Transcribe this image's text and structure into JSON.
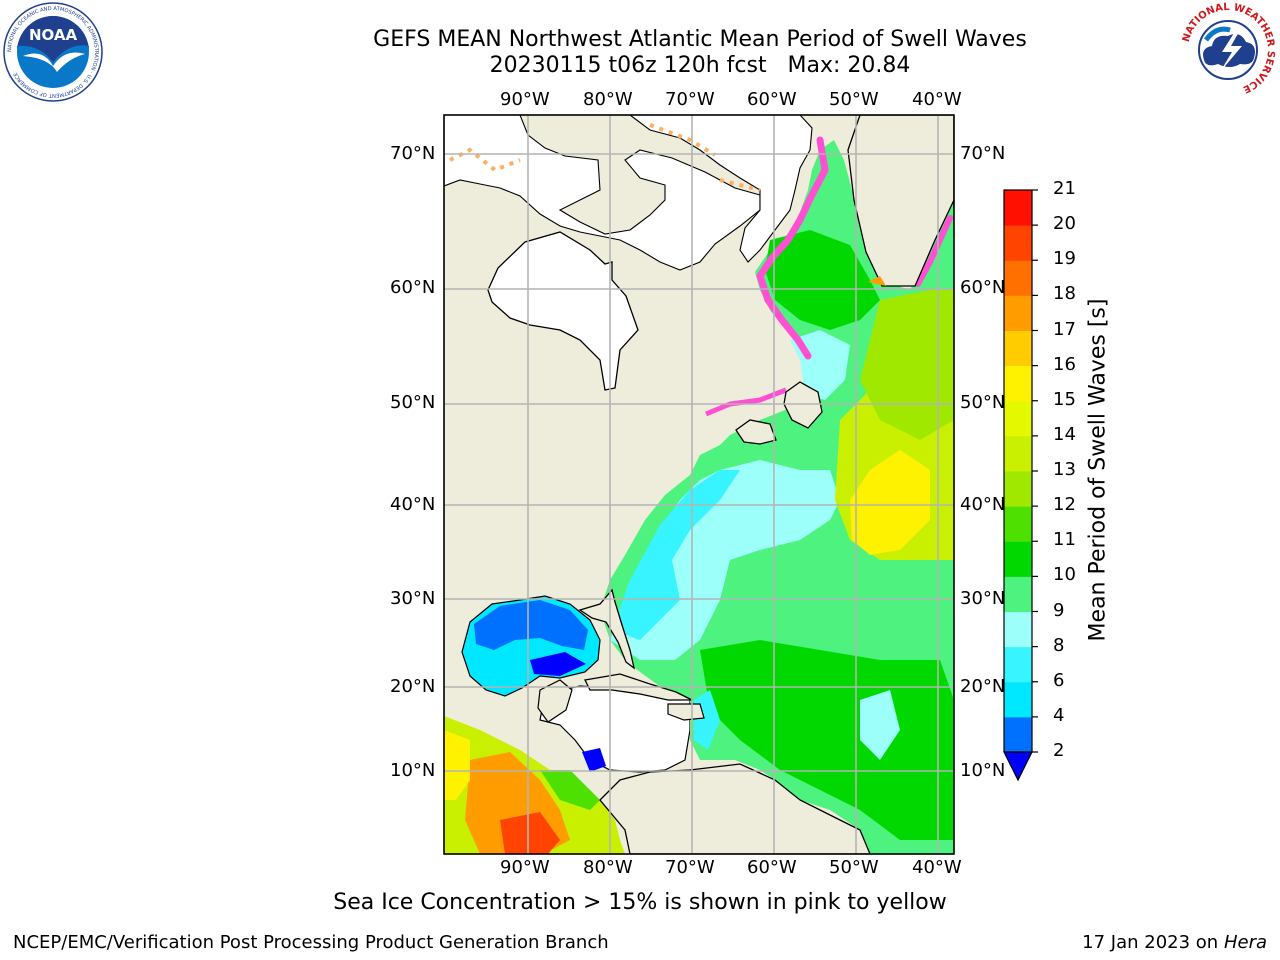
{
  "header": {
    "title_line1": "GEFS MEAN Northwest Atlantic Mean Period of Swell Waves",
    "title_line2": "20230115 t06z 120h fcst   Max: 20.84"
  },
  "logos": {
    "noaa_text": "NOAA",
    "noaa_ring_text": "NATIONAL OCEANIC AND ATMOSPHERIC ADMINISTRATION · U.S. DEPARTMENT OF COMMERCE",
    "nws_ring_text": "NATIONAL WEATHER SERVICE"
  },
  "map": {
    "lon_labels": [
      "90°W",
      "80°W",
      "70°W",
      "60°W",
      "50°W",
      "40°W"
    ],
    "lat_labels": [
      "70°N",
      "60°N",
      "50°N",
      "40°N",
      "30°N",
      "20°N",
      "10°N"
    ],
    "colors": {
      "land": "#eeecdb",
      "ocean": "#ffffff",
      "coast": "#000000",
      "grid": "#b4b4b4"
    }
  },
  "colorbar": {
    "label": "Mean Period of Swell Waves [s]",
    "ticks": [
      "2",
      "4",
      "6",
      "8",
      "9",
      "10",
      "11",
      "12",
      "13",
      "14",
      "15",
      "16",
      "17",
      "18",
      "19",
      "20",
      "21"
    ],
    "colors": [
      "#0070ff",
      "#00e8ff",
      "#38f4ff",
      "#9cfff9",
      "#4ef27e",
      "#00d800",
      "#4ee000",
      "#a0e800",
      "#c8f000",
      "#e4f800",
      "#fff200",
      "#ffcc00",
      "#ff9c00",
      "#ff7000",
      "#ff4400",
      "#ff1000"
    ],
    "under_color": "#0000ff"
  },
  "note": "Sea Ice Concentration > 15% is shown in pink to yellow",
  "footer": {
    "left": "NCEP/EMC/Verification Post Processing Product Generation Branch",
    "date": "17 Jan 2023 on",
    "host": "Hera"
  }
}
